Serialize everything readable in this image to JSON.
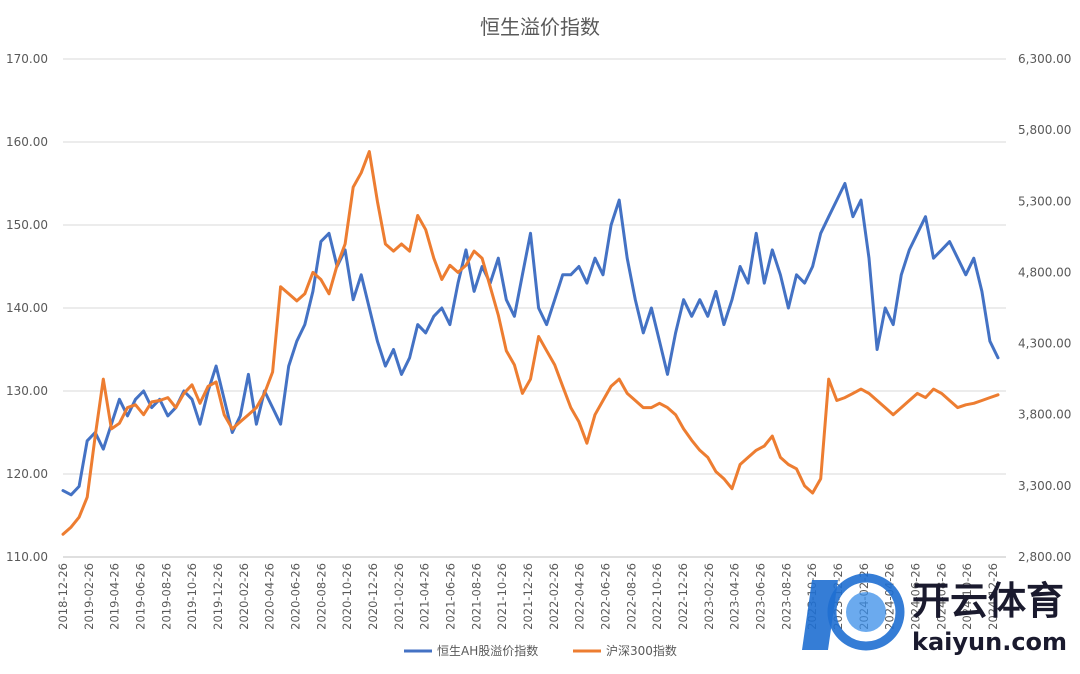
{
  "chart_data": {
    "type": "line",
    "title": "恒生溢价指数",
    "y_left": {
      "ylim": [
        110,
        170
      ],
      "ticks": [
        "110.00",
        "120.00",
        "130.00",
        "140.00",
        "150.00",
        "160.00",
        "170.00"
      ]
    },
    "y_right": {
      "ylim": [
        2800,
        6300
      ],
      "ticks": [
        "2,800.00",
        "3,300.00",
        "3,800.00",
        "4,300.00",
        "4,800.00",
        "5,300.00",
        "5,800.00",
        "6,300.00"
      ]
    },
    "x_range_months": [
      0,
      73
    ],
    "x_ticks": [
      "2018-12-26",
      "2019-02-26",
      "2019-04-26",
      "2019-06-26",
      "2019-08-26",
      "2019-10-26",
      "2019-12-26",
      "2020-02-26",
      "2020-04-26",
      "2020-06-26",
      "2020-08-26",
      "2020-10-26",
      "2020-12-26",
      "2021-02-26",
      "2021-04-26",
      "2021-06-26",
      "2021-08-26",
      "2021-10-26",
      "2021-12-26",
      "2022-02-26",
      "2022-04-26",
      "2022-06-26",
      "2022-08-26",
      "2022-10-26",
      "2022-12-26",
      "2023-02-26",
      "2023-04-26",
      "2023-06-26",
      "2023-08-26",
      "2023-10-26",
      "2023-12-26",
      "2024-02-26",
      "2024-04-26",
      "2024-06-26",
      "2024-08-26",
      "2024-10-26",
      "2024-12-26"
    ],
    "series": [
      {
        "name": "恒生AH股溢价指数",
        "axis": "left",
        "color": "#4472C4",
        "points": [
          [
            0,
            118
          ],
          [
            1,
            117.5
          ],
          [
            2,
            118.5
          ],
          [
            3,
            124
          ],
          [
            4,
            125
          ],
          [
            5,
            123
          ],
          [
            6,
            126
          ],
          [
            7,
            129
          ],
          [
            8,
            127
          ],
          [
            9,
            129
          ],
          [
            10,
            130
          ],
          [
            11,
            128
          ],
          [
            12,
            129
          ],
          [
            13,
            127
          ],
          [
            14,
            128
          ],
          [
            15,
            130
          ],
          [
            16,
            129
          ],
          [
            17,
            126
          ],
          [
            18,
            130
          ],
          [
            19,
            133
          ],
          [
            20,
            129
          ],
          [
            21,
            125
          ],
          [
            22,
            127
          ],
          [
            23,
            132
          ],
          [
            24,
            126
          ],
          [
            25,
            130
          ],
          [
            26,
            128
          ],
          [
            27,
            126
          ],
          [
            28,
            133
          ],
          [
            29,
            136
          ],
          [
            30,
            138
          ],
          [
            31,
            142
          ],
          [
            32,
            148
          ],
          [
            33,
            149
          ],
          [
            34,
            145
          ],
          [
            35,
            147
          ],
          [
            36,
            141
          ],
          [
            37,
            144
          ],
          [
            38,
            140
          ],
          [
            39,
            136
          ],
          [
            40,
            133
          ],
          [
            41,
            135
          ],
          [
            42,
            132
          ],
          [
            43,
            134
          ],
          [
            44,
            138
          ],
          [
            45,
            137
          ],
          [
            46,
            139
          ],
          [
            47,
            140
          ],
          [
            48,
            138
          ],
          [
            49,
            143
          ],
          [
            50,
            147
          ],
          [
            51,
            142
          ],
          [
            52,
            145
          ],
          [
            53,
            143
          ],
          [
            54,
            146
          ],
          [
            55,
            141
          ],
          [
            56,
            139
          ],
          [
            57,
            144
          ],
          [
            58,
            149
          ],
          [
            59,
            140
          ],
          [
            60,
            138
          ],
          [
            61,
            141
          ],
          [
            62,
            144
          ],
          [
            63,
            144
          ],
          [
            64,
            145
          ],
          [
            65,
            143
          ],
          [
            66,
            146
          ],
          [
            67,
            144
          ],
          [
            68,
            150
          ],
          [
            69,
            153
          ],
          [
            70,
            146
          ],
          [
            71,
            141
          ],
          [
            72,
            137
          ],
          [
            73,
            140
          ],
          [
            74,
            136
          ],
          [
            75,
            132
          ],
          [
            76,
            137
          ],
          [
            77,
            141
          ],
          [
            78,
            139
          ],
          [
            79,
            141
          ],
          [
            80,
            139
          ],
          [
            81,
            142
          ],
          [
            82,
            138
          ],
          [
            83,
            141
          ],
          [
            84,
            145
          ],
          [
            85,
            143
          ],
          [
            86,
            149
          ],
          [
            87,
            143
          ],
          [
            88,
            147
          ],
          [
            89,
            144
          ],
          [
            90,
            140
          ],
          [
            91,
            144
          ],
          [
            92,
            143
          ],
          [
            93,
            145
          ],
          [
            94,
            149
          ],
          [
            95,
            151
          ],
          [
            96,
            153
          ],
          [
            97,
            155
          ],
          [
            98,
            151
          ],
          [
            99,
            153
          ],
          [
            100,
            146
          ],
          [
            101,
            135
          ],
          [
            102,
            140
          ],
          [
            103,
            138
          ],
          [
            104,
            144
          ],
          [
            105,
            147
          ],
          [
            106,
            149
          ],
          [
            107,
            151
          ],
          [
            108,
            146
          ],
          [
            109,
            147
          ],
          [
            110,
            148
          ],
          [
            111,
            146
          ],
          [
            112,
            144
          ],
          [
            113,
            146
          ],
          [
            114,
            142
          ],
          [
            115,
            136
          ],
          [
            116,
            134
          ]
        ]
      },
      {
        "name": "沪深300指数",
        "axis": "right",
        "color": "#ED7D31",
        "points": [
          [
            0,
            2960
          ],
          [
            1,
            3010
          ],
          [
            2,
            3080
          ],
          [
            3,
            3220
          ],
          [
            4,
            3650
          ],
          [
            5,
            4050
          ],
          [
            6,
            3700
          ],
          [
            7,
            3740
          ],
          [
            8,
            3850
          ],
          [
            9,
            3870
          ],
          [
            10,
            3800
          ],
          [
            11,
            3890
          ],
          [
            12,
            3900
          ],
          [
            13,
            3920
          ],
          [
            14,
            3850
          ],
          [
            15,
            3950
          ],
          [
            16,
            4010
          ],
          [
            17,
            3880
          ],
          [
            18,
            4000
          ],
          [
            19,
            4030
          ],
          [
            20,
            3800
          ],
          [
            21,
            3700
          ],
          [
            22,
            3750
          ],
          [
            23,
            3800
          ],
          [
            24,
            3850
          ],
          [
            25,
            3950
          ],
          [
            26,
            4100
          ],
          [
            27,
            4700
          ],
          [
            28,
            4650
          ],
          [
            29,
            4600
          ],
          [
            30,
            4650
          ],
          [
            31,
            4800
          ],
          [
            32,
            4750
          ],
          [
            33,
            4650
          ],
          [
            34,
            4850
          ],
          [
            35,
            5000
          ],
          [
            36,
            5400
          ],
          [
            37,
            5500
          ],
          [
            38,
            5650
          ],
          [
            39,
            5300
          ],
          [
            40,
            5000
          ],
          [
            41,
            4950
          ],
          [
            42,
            5000
          ],
          [
            43,
            4950
          ],
          [
            44,
            5200
          ],
          [
            45,
            5100
          ],
          [
            46,
            4900
          ],
          [
            47,
            4750
          ],
          [
            48,
            4850
          ],
          [
            49,
            4800
          ],
          [
            50,
            4850
          ],
          [
            51,
            4950
          ],
          [
            52,
            4900
          ],
          [
            53,
            4700
          ],
          [
            54,
            4500
          ],
          [
            55,
            4250
          ],
          [
            56,
            4150
          ],
          [
            57,
            3950
          ],
          [
            58,
            4050
          ],
          [
            59,
            4350
          ],
          [
            60,
            4250
          ],
          [
            61,
            4150
          ],
          [
            62,
            4000
          ],
          [
            63,
            3850
          ],
          [
            64,
            3750
          ],
          [
            65,
            3600
          ],
          [
            66,
            3800
          ],
          [
            67,
            3900
          ],
          [
            68,
            4000
          ],
          [
            69,
            4050
          ],
          [
            70,
            3950
          ],
          [
            71,
            3900
          ],
          [
            72,
            3850
          ],
          [
            73,
            3850
          ],
          [
            74,
            3880
          ],
          [
            75,
            3850
          ],
          [
            76,
            3800
          ],
          [
            77,
            3700
          ],
          [
            78,
            3620
          ],
          [
            79,
            3550
          ],
          [
            80,
            3500
          ],
          [
            81,
            3400
          ],
          [
            82,
            3350
          ],
          [
            83,
            3280
          ],
          [
            84,
            3450
          ],
          [
            85,
            3500
          ],
          [
            86,
            3550
          ],
          [
            87,
            3580
          ],
          [
            88,
            3650
          ],
          [
            89,
            3500
          ],
          [
            90,
            3450
          ],
          [
            91,
            3420
          ],
          [
            92,
            3300
          ],
          [
            93,
            3250
          ],
          [
            94,
            3350
          ],
          [
            95,
            4050
          ],
          [
            96,
            3900
          ],
          [
            97,
            3920
          ],
          [
            98,
            3950
          ],
          [
            99,
            3980
          ],
          [
            100,
            3950
          ],
          [
            101,
            3900
          ],
          [
            102,
            3850
          ],
          [
            103,
            3800
          ],
          [
            104,
            3850
          ],
          [
            105,
            3900
          ],
          [
            106,
            3950
          ],
          [
            107,
            3920
          ],
          [
            108,
            3980
          ],
          [
            109,
            3950
          ],
          [
            110,
            3900
          ],
          [
            111,
            3850
          ],
          [
            112,
            3870
          ],
          [
            113,
            3880
          ],
          [
            114,
            3900
          ],
          [
            115,
            3920
          ],
          [
            116,
            3940
          ]
        ]
      }
    ],
    "legend_position": "bottom"
  },
  "watermark": {
    "brand": "开云体育",
    "domain": "kaiyun.com"
  }
}
